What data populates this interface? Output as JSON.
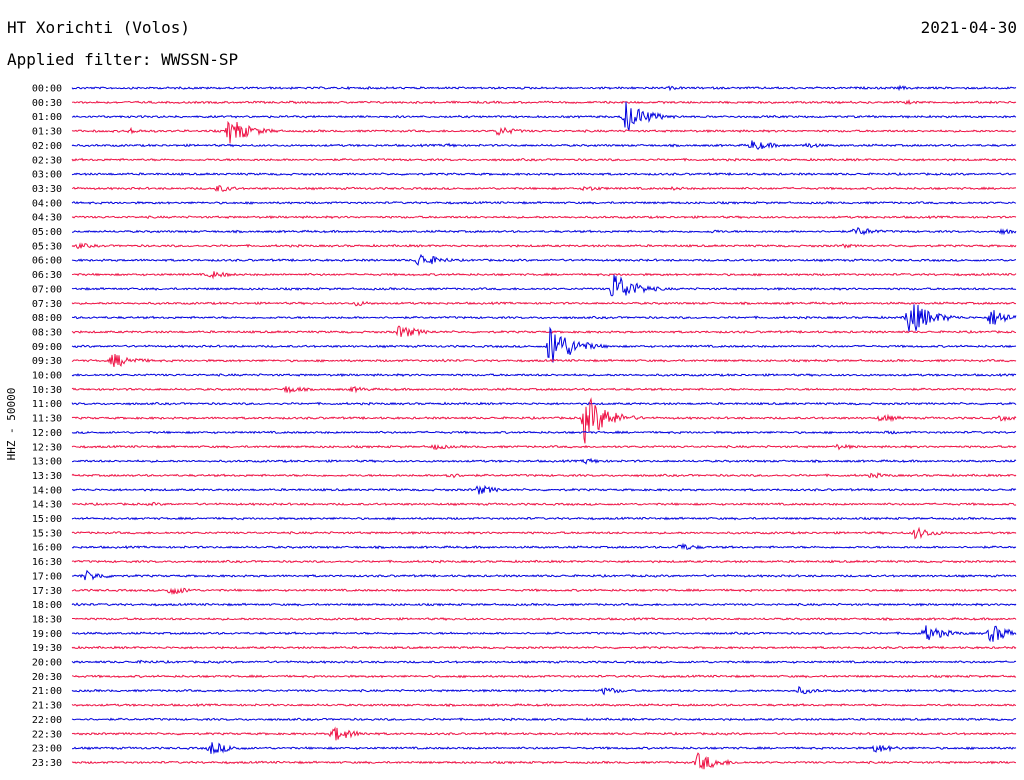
{
  "header": {
    "station": "HT Xorichti (Volos)",
    "filter": "Applied filter: WWSSN-SP",
    "date": "2021-04-30"
  },
  "channel_label": "HHZ - 50000",
  "chart_data": {
    "type": "line",
    "title": "HT Xorichti (Volos)",
    "subtitle": "Applied filter: WWSSN-SP",
    "date": "2021-04-30",
    "ylabel": "HHZ - 50000",
    "line_colors": [
      "#0000dd",
      "#ee1144"
    ],
    "rows": [
      "00:00",
      "00:30",
      "01:00",
      "01:30",
      "02:00",
      "02:30",
      "03:00",
      "03:30",
      "04:00",
      "04:30",
      "05:00",
      "05:30",
      "06:00",
      "06:30",
      "07:00",
      "07:30",
      "08:00",
      "08:30",
      "09:00",
      "09:30",
      "10:00",
      "10:30",
      "11:00",
      "11:30",
      "12:00",
      "12:30",
      "13:00",
      "13:30",
      "14:00",
      "14:30",
      "15:00",
      "15:30",
      "16:00",
      "16:30",
      "17:00",
      "17:30",
      "18:00",
      "18:30",
      "19:00",
      "19:30",
      "20:00",
      "20:30",
      "21:00",
      "21:30",
      "22:00",
      "22:30",
      "23:00",
      "23:30"
    ],
    "minutes_per_row": 30,
    "events": [
      {
        "row": "00:00",
        "minute": 19.0,
        "amplitude": 2
      },
      {
        "row": "00:00",
        "minute": 26.3,
        "amplitude": 2
      },
      {
        "row": "00:30",
        "minute": 26.5,
        "amplitude": 2
      },
      {
        "row": "01:00",
        "minute": 17.6,
        "amplitude": 16
      },
      {
        "row": "01:30",
        "minute": 1.8,
        "amplitude": 3
      },
      {
        "row": "01:30",
        "minute": 5.0,
        "amplitude": 14
      },
      {
        "row": "01:30",
        "minute": 13.5,
        "amplitude": 5
      },
      {
        "row": "02:00",
        "minute": 11.9,
        "amplitude": 2
      },
      {
        "row": "02:00",
        "minute": 21.6,
        "amplitude": 6
      },
      {
        "row": "02:00",
        "minute": 23.3,
        "amplitude": 3
      },
      {
        "row": "03:30",
        "minute": 4.6,
        "amplitude": 4
      },
      {
        "row": "03:30",
        "minute": 16.3,
        "amplitude": 3
      },
      {
        "row": "03:30",
        "minute": 19.1,
        "amplitude": 2
      },
      {
        "row": "05:00",
        "minute": 20.3,
        "amplitude": 2
      },
      {
        "row": "05:00",
        "minute": 24.9,
        "amplitude": 5
      },
      {
        "row": "05:00",
        "minute": 29.5,
        "amplitude": 3
      },
      {
        "row": "05:30",
        "minute": 0.2,
        "amplitude": 3
      },
      {
        "row": "05:30",
        "minute": 24.5,
        "amplitude": 2
      },
      {
        "row": "06:00",
        "minute": 11.0,
        "amplitude": 8
      },
      {
        "row": "06:30",
        "minute": 4.4,
        "amplitude": 4
      },
      {
        "row": "07:00",
        "minute": 17.2,
        "amplitude": 18
      },
      {
        "row": "07:30",
        "minute": 9.0,
        "amplitude": 3
      },
      {
        "row": "08:00",
        "minute": 26.6,
        "amplitude": 20
      },
      {
        "row": "08:00",
        "minute": 29.2,
        "amplitude": 10
      },
      {
        "row": "08:30",
        "minute": 10.4,
        "amplitude": 7
      },
      {
        "row": "09:00",
        "minute": 15.2,
        "amplitude": 24
      },
      {
        "row": "09:30",
        "minute": 1.3,
        "amplitude": 8
      },
      {
        "row": "09:30",
        "minute": 11.8,
        "amplitude": 2
      },
      {
        "row": "10:30",
        "minute": 6.8,
        "amplitude": 4
      },
      {
        "row": "10:30",
        "minute": 8.9,
        "amplitude": 3
      },
      {
        "row": "11:30",
        "minute": 16.3,
        "amplitude": 26
      },
      {
        "row": "11:30",
        "minute": 25.7,
        "amplitude": 4
      },
      {
        "row": "11:30",
        "minute": 29.5,
        "amplitude": 3
      },
      {
        "row": "12:00",
        "minute": 25.9,
        "amplitude": 2
      },
      {
        "row": "12:30",
        "minute": 11.5,
        "amplitude": 3
      },
      {
        "row": "12:30",
        "minute": 24.3,
        "amplitude": 3
      },
      {
        "row": "13:00",
        "minute": 16.3,
        "amplitude": 3
      },
      {
        "row": "13:30",
        "minute": 11.9,
        "amplitude": 3
      },
      {
        "row": "13:30",
        "minute": 25.4,
        "amplitude": 3
      },
      {
        "row": "14:00",
        "minute": 12.9,
        "amplitude": 5
      },
      {
        "row": "14:30",
        "minute": 2.5,
        "amplitude": 2
      },
      {
        "row": "15:30",
        "minute": 26.8,
        "amplitude": 6
      },
      {
        "row": "16:00",
        "minute": 19.3,
        "amplitude": 4
      },
      {
        "row": "17:00",
        "minute": 0.4,
        "amplitude": 6
      },
      {
        "row": "17:30",
        "minute": 3.1,
        "amplitude": 5
      },
      {
        "row": "18:00",
        "minute": 0.1,
        "amplitude": 2
      },
      {
        "row": "19:00",
        "minute": 27.1,
        "amplitude": 9
      },
      {
        "row": "19:00",
        "minute": 29.2,
        "amplitude": 10
      },
      {
        "row": "20:00",
        "minute": 2.2,
        "amplitude": 2
      },
      {
        "row": "21:00",
        "minute": 16.9,
        "amplitude": 4
      },
      {
        "row": "21:00",
        "minute": 23.1,
        "amplitude": 4
      },
      {
        "row": "22:30",
        "minute": 8.3,
        "amplitude": 8
      },
      {
        "row": "23:00",
        "minute": 4.4,
        "amplitude": 7
      },
      {
        "row": "23:00",
        "minute": 25.5,
        "amplitude": 5
      },
      {
        "row": "23:30",
        "minute": 19.9,
        "amplitude": 10
      }
    ],
    "grid": false
  }
}
